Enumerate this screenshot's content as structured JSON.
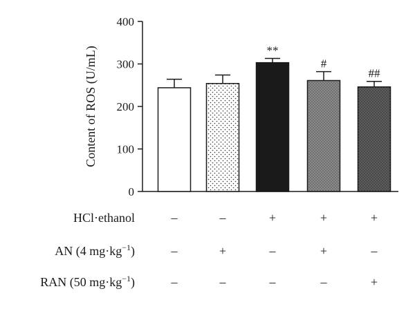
{
  "chart_data": {
    "type": "bar",
    "ylabel": "Content of ROS (U/mL)",
    "ylim": [
      0,
      400
    ],
    "yticks": [
      0,
      100,
      200,
      300,
      400
    ],
    "grid": false,
    "groups": [
      {
        "value": 244,
        "error": 20,
        "significance": "",
        "fill": "#ffffff",
        "pattern": "none"
      },
      {
        "value": 254,
        "error": 20,
        "significance": "",
        "fill": "#ffffff",
        "pattern": "dots-sparse"
      },
      {
        "value": 303,
        "error": 10,
        "significance": "**",
        "fill": "#1a1a1a",
        "pattern": "none"
      },
      {
        "value": 261,
        "error": 21,
        "significance": "#",
        "fill": "#8c8c8c",
        "pattern": "dots-dark"
      },
      {
        "value": 246,
        "error": 13,
        "significance": "##",
        "fill": "#5c5c5c",
        "pattern": "dots-dark"
      }
    ],
    "treatments": [
      {
        "label": "HCl·ethanol",
        "signs": [
          "–",
          "–",
          "+",
          "+",
          "+"
        ]
      },
      {
        "label_main": "AN (4 mg·kg",
        "label_sup": "−1",
        "label_end": ")",
        "signs": [
          "–",
          "+",
          "–",
          "+",
          "–"
        ]
      },
      {
        "label_main": "RAN (50 mg·kg",
        "label_sup": "−1",
        "label_end": ")",
        "signs": [
          "–",
          "–",
          "–",
          "–",
          "+"
        ]
      }
    ]
  }
}
